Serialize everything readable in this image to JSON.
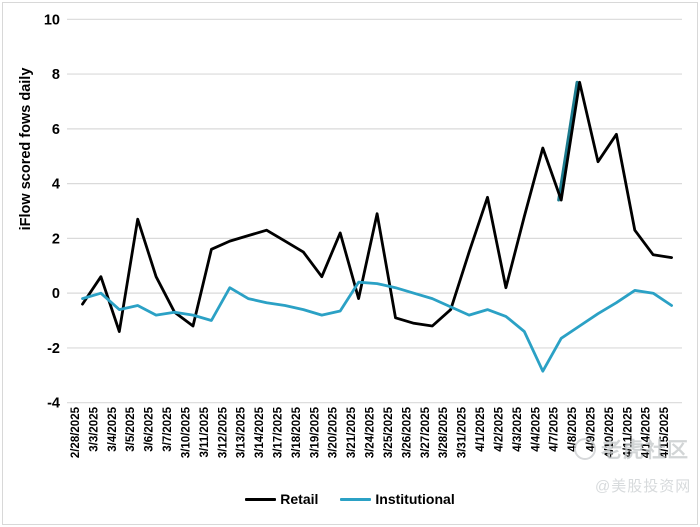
{
  "chart_data": {
    "type": "line",
    "title": "",
    "ylabel": "iFlow scored fows daily",
    "xlabel": "",
    "ylim": [
      -4,
      10
    ],
    "yticks": [
      10,
      8,
      6,
      4,
      2,
      0,
      -2,
      -4
    ],
    "grid": true,
    "gridline_color": "#dadada",
    "legend_position": "bottom",
    "categories": [
      "2/28/2025",
      "3/3/2025",
      "3/4/2025",
      "3/5/2025",
      "3/6/2025",
      "3/7/2025",
      "3/10/2025",
      "3/11/2025",
      "3/12/2025",
      "3/13/2025",
      "3/14/2025",
      "3/17/2025",
      "3/18/2025",
      "3/19/2025",
      "3/20/2025",
      "3/21/2025",
      "3/24/2025",
      "3/25/2025",
      "3/26/2025",
      "3/27/2025",
      "3/28/2025",
      "3/31/2025",
      "4/1/2025",
      "4/2/2025",
      "4/3/2025",
      "4/4/2025",
      "4/7/2025",
      "4/8/2025",
      "4/9/2025",
      "4/10/2025",
      "4/11/2025",
      "4/14/2025",
      "4/15/2025"
    ],
    "series": [
      {
        "name": "Retail",
        "color": "#000000",
        "values": [
          -0.4,
          0.6,
          -1.4,
          2.7,
          0.6,
          -0.7,
          -1.2,
          1.6,
          1.9,
          2.1,
          2.3,
          1.9,
          1.5,
          0.6,
          2.2,
          -0.2,
          2.9,
          -0.9,
          -1.1,
          -1.2,
          -0.6,
          1.5,
          3.5,
          0.2,
          2.8,
          5.3,
          3.4,
          7.7,
          4.8,
          5.8,
          2.3,
          1.4,
          1.3
        ]
      },
      {
        "name": "Institutional",
        "color": "#2ba1c5",
        "values": [
          -0.2,
          0.0,
          -0.6,
          -0.45,
          -0.8,
          -0.7,
          -0.8,
          -1.0,
          0.2,
          -0.2,
          -0.35,
          -0.45,
          -0.6,
          -0.8,
          -0.65,
          0.4,
          0.35,
          0.2,
          0.0,
          -0.2,
          -0.5,
          -0.8,
          -0.6,
          -0.85,
          -1.4,
          -2.85,
          -1.65,
          -1.2,
          -0.75,
          -0.35,
          0.1,
          0.0,
          -0.45
        ]
      }
    ],
    "highlight_segment": {
      "note": "rise into 4/8/2025 peak drawn in teal",
      "from_category": "4/7/2025",
      "to_category": "4/8/2025",
      "from_index": 26,
      "to_index": 27,
      "color": "#1c7b8e"
    }
  },
  "legend": {
    "items": [
      {
        "label": "Retail",
        "color": "#000000"
      },
      {
        "label": "Institutional",
        "color": "#2ba1c5"
      }
    ]
  },
  "watermark": {
    "logo": "tiger-community-logo",
    "line1": "老虎社区",
    "line2": "@美股投资网"
  }
}
